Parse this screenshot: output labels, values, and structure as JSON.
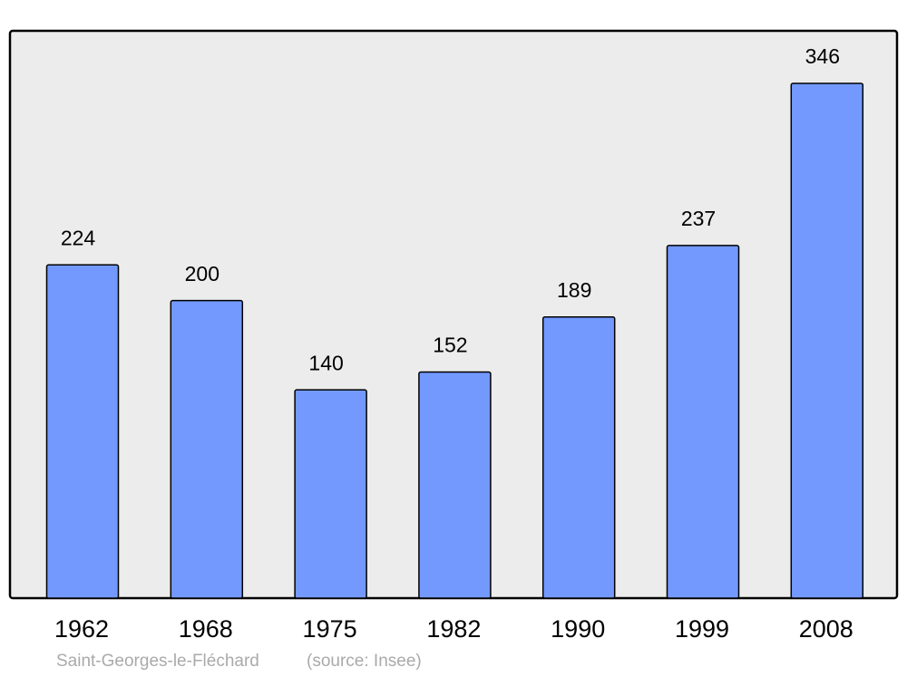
{
  "chart_data": {
    "type": "bar",
    "title": "Saint-Georges-le-Fléchard",
    "source": "(source: Insee)",
    "categories": [
      "1962",
      "1968",
      "1975",
      "1982",
      "1990",
      "1999",
      "2008"
    ],
    "values": [
      224,
      200,
      140,
      152,
      189,
      237,
      346
    ],
    "color": "#7399ff"
  }
}
